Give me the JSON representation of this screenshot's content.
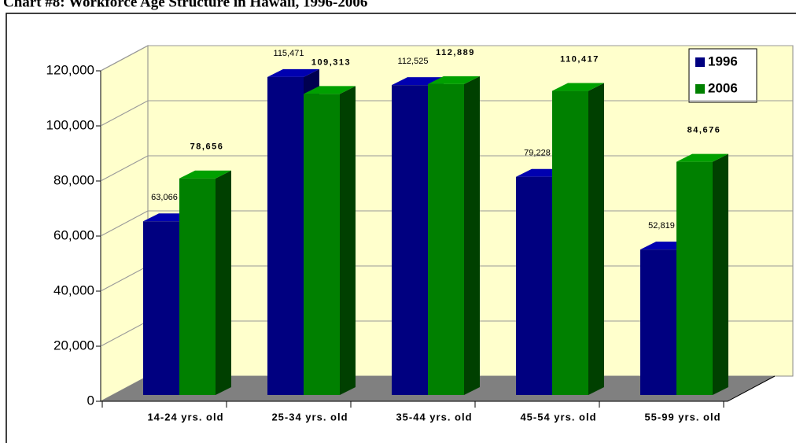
{
  "chart_data": {
    "type": "bar3d",
    "title": "Chart #8: Workforce Age Structure in Hawaii, 1996-2006",
    "categories": [
      "14-24 yrs. old",
      "25-34 yrs. old",
      "35-44 yrs. old",
      "45-54 yrs. old",
      "55-99 yrs. old"
    ],
    "series": [
      {
        "name": "1996",
        "color": "#000080",
        "values": [
          63066,
          115471,
          112525,
          79228,
          52819
        ],
        "value_labels": [
          "63,066",
          "115,471",
          "112,525",
          "79,228",
          "52,819"
        ]
      },
      {
        "name": "2006",
        "color": "#008000",
        "values": [
          78656,
          109313,
          112889,
          110417,
          84676
        ],
        "value_labels": [
          "78,656",
          "109,313",
          "112,889",
          "110,417",
          "84,676"
        ]
      }
    ],
    "ylim": [
      0,
      120000
    ],
    "yticks": [
      0,
      {
        "value": 20000,
        "label": "20,000"
      },
      {
        "value": 40000,
        "label": "40,000"
      },
      {
        "value": 60000,
        "label": "60,000"
      },
      {
        "value": 80000,
        "label": "80,000"
      },
      {
        "value": 100000,
        "label": "100,000"
      },
      {
        "value": 120000,
        "label": "120,000"
      }
    ],
    "grid": true,
    "legend": "top-right"
  }
}
